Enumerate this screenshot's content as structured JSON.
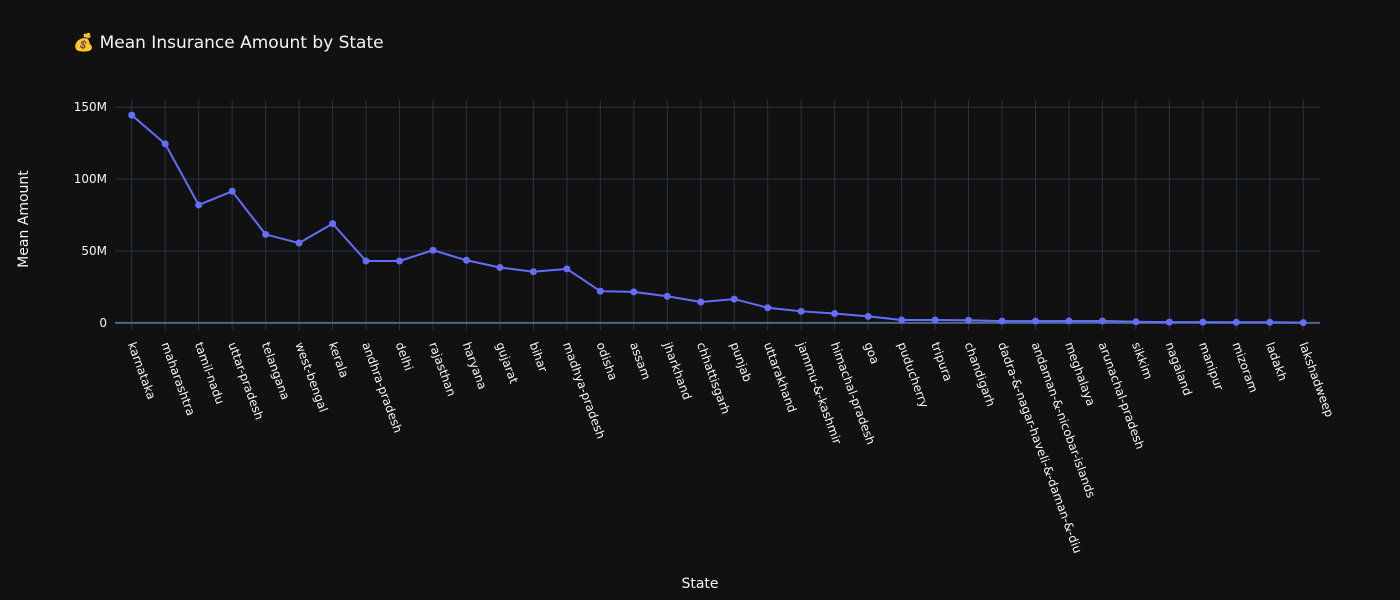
{
  "title_icon": "money-bag-icon",
  "title_icon_glyph": "💰",
  "chart_data": {
    "type": "line",
    "title": "Mean Insurance Amount by State",
    "xlabel": "State",
    "ylabel": "Mean Amount",
    "ylim": [
      -5000000,
      155000000
    ],
    "yticks": [
      0,
      50000000,
      100000000,
      150000000
    ],
    "ytick_labels": [
      "0",
      "50M",
      "100M",
      "150M"
    ],
    "grid": true,
    "line_color": "#636efa",
    "categories": [
      "karnataka",
      "maharashtra",
      "tamil-nadu",
      "uttar-pradesh",
      "telangana",
      "west-bengal",
      "kerala",
      "andhra-pradesh",
      "delhi",
      "rajasthan",
      "haryana",
      "gujarat",
      "bihar",
      "madhya-pradesh",
      "odisha",
      "assam",
      "jharkhand",
      "chhattisgarh",
      "punjab",
      "uttarakhand",
      "jammu-&-kashmir",
      "himachal-pradesh",
      "goa",
      "puducherry",
      "tripura",
      "chandigarh",
      "dadra-&-nagar-haveli-&-daman-&-diu",
      "andaman-&-nicobar-islands",
      "meghalaya",
      "arunachal-pradesh",
      "sikkim",
      "nagaland",
      "manipur",
      "mizoram",
      "ladakh",
      "lakshadweep"
    ],
    "values": [
      144500000,
      124500000,
      82000000,
      91500000,
      61500000,
      55500000,
      69000000,
      43000000,
      43000000,
      50500000,
      43500000,
      38500000,
      35500000,
      37500000,
      22000000,
      21500000,
      18500000,
      14500000,
      16500000,
      10500000,
      8000000,
      6500000,
      4500000,
      2000000,
      2000000,
      1800000,
      1200000,
      1200000,
      1300000,
      1300000,
      700000,
      500000,
      500000,
      400000,
      400000,
      100000
    ]
  }
}
